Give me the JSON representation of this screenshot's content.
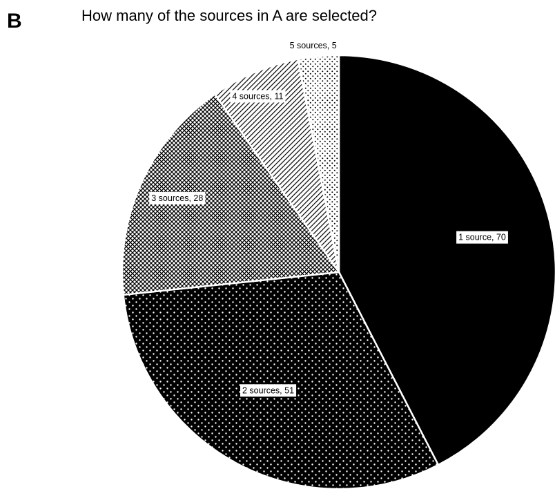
{
  "panel_letter": "B",
  "chart_data": {
    "type": "pie",
    "title": "How many of the sources in A are selected?",
    "slices": [
      {
        "label": "1 source, 70",
        "value": 70,
        "fill": "#000000",
        "pattern": "solid"
      },
      {
        "label": "2 sources, 51",
        "value": 51,
        "fill": "#000000",
        "pattern": "light-dots-on-black"
      },
      {
        "label": "3 sources, 28",
        "value": 28,
        "fill": "#888888",
        "pattern": "crosshatch"
      },
      {
        "label": "4 sources, 11",
        "value": 11,
        "fill": "#555555",
        "pattern": "diagonal-lines"
      },
      {
        "label": "5 sources, 5",
        "value": 5,
        "fill": "#ffffff",
        "pattern": "dark-dots-on-white"
      }
    ],
    "start_angle": "12 o'clock",
    "direction": "clockwise",
    "legend": "none"
  }
}
